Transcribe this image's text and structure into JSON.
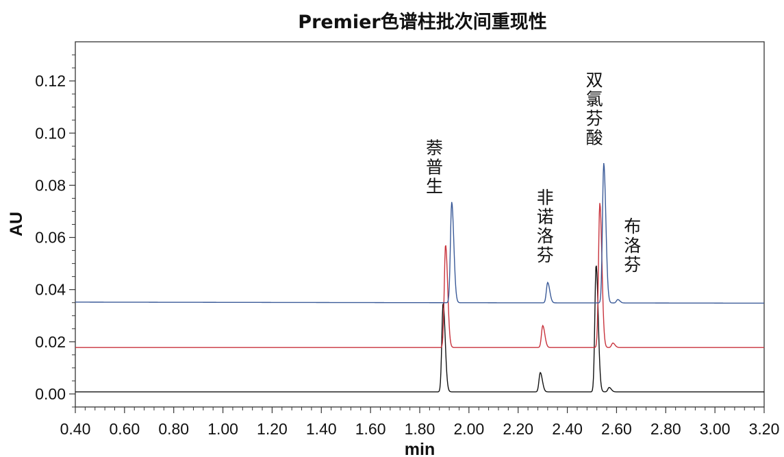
{
  "chart_data": {
    "type": "line",
    "title": "Premier色谱柱批次间重现性",
    "xlabel": "min",
    "ylabel": "AU",
    "xlim": [
      0.4,
      3.2
    ],
    "ylim": [
      -0.005,
      0.135
    ],
    "x_ticks": [
      "0.40",
      "0.60",
      "0.80",
      "1.00",
      "1.20",
      "1.40",
      "1.60",
      "1.80",
      "2.00",
      "2.20",
      "2.40",
      "2.60",
      "2.80",
      "3.00",
      "3.20"
    ],
    "y_ticks": [
      "0.00",
      "0.02",
      "0.04",
      "0.06",
      "0.08",
      "0.10",
      "0.12"
    ],
    "grid": false,
    "legend": "none",
    "series": [
      {
        "color": "#3a5a98",
        "baseline": 0.0352,
        "baseline_end": 0.0348,
        "peaks": [
          {
            "x": 1.93,
            "y": 0.0738
          },
          {
            "x": 2.32,
            "y": 0.043
          },
          {
            "x": 2.548,
            "y": 0.0888
          },
          {
            "x": 2.605,
            "y": 0.0365
          }
        ]
      },
      {
        "color": "#c8323c",
        "baseline": 0.0178,
        "baseline_end": 0.0178,
        "peaks": [
          {
            "x": 1.905,
            "y": 0.0572
          },
          {
            "x": 2.3,
            "y": 0.0262
          },
          {
            "x": 2.532,
            "y": 0.0732
          },
          {
            "x": 2.585,
            "y": 0.0195
          }
        ]
      },
      {
        "color": "#111111",
        "baseline": 0.0008,
        "baseline_end": 0.0008,
        "peaks": [
          {
            "x": 1.895,
            "y": 0.0348
          },
          {
            "x": 2.29,
            "y": 0.0082
          },
          {
            "x": 2.517,
            "y": 0.0495
          },
          {
            "x": 2.57,
            "y": 0.0025
          }
        ]
      }
    ],
    "annotations": [
      {
        "text": "萘普生",
        "x": 1.86,
        "y": 0.092
      },
      {
        "text": "非诺洛芬",
        "x": 2.31,
        "y": 0.073
      },
      {
        "text": "双氯芬酸",
        "x": 2.51,
        "y": 0.118
      },
      {
        "text": "布洛芬",
        "x": 2.665,
        "y": 0.062
      }
    ]
  }
}
